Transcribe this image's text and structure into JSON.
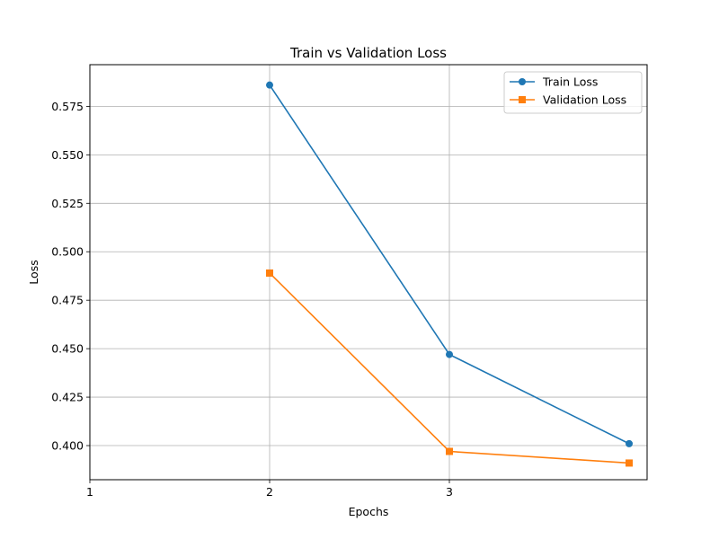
{
  "chart_data": {
    "type": "line",
    "title": "Train vs Validation Loss",
    "xlabel": "Epochs",
    "ylabel": "Loss",
    "xlim": [
      1,
      4.1
    ],
    "ylim": [
      0.3824,
      0.5965
    ],
    "xticks": [
      1,
      2,
      3
    ],
    "yticks": [
      0.4,
      0.425,
      0.45,
      0.475,
      0.5,
      0.525,
      0.55,
      0.575
    ],
    "ytick_labels": [
      "0.400",
      "0.425",
      "0.450",
      "0.475",
      "0.500",
      "0.525",
      "0.550",
      "0.575"
    ],
    "grid": true,
    "legend_position": "top-right",
    "series": [
      {
        "name": "Train Loss",
        "color": "#1f77b4",
        "marker": "circle",
        "x": [
          2,
          3,
          4
        ],
        "values": [
          0.586,
          0.447,
          0.401
        ]
      },
      {
        "name": "Validation Loss",
        "color": "#ff7f0e",
        "marker": "square",
        "x": [
          2,
          3,
          4
        ],
        "values": [
          0.489,
          0.397,
          0.391
        ]
      }
    ]
  }
}
